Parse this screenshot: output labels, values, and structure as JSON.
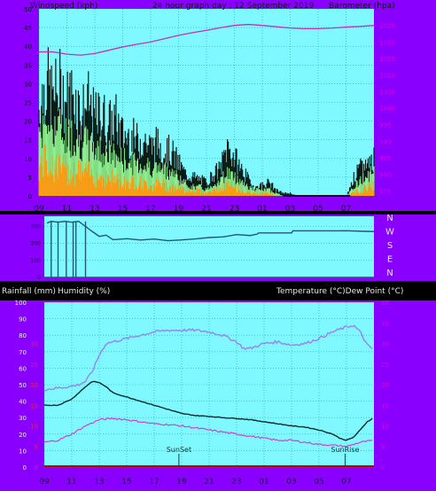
{
  "colors": {
    "outer": "#8a00ff",
    "plot": "#7ff9ff",
    "grid": "#20a8a8",
    "dark_text": "#101020",
    "magenta_text": "#e000e0",
    "red_text": "#ff2020",
    "gust": "#0a1a14",
    "wind_avg": "#90f090",
    "wind_low": "#ff9a10",
    "barometer": "#c030c0",
    "direction": "#1f5878",
    "humidity": "#9a80f0",
    "temperature": "#0a2a28",
    "dewpoint": "#d040d0",
    "rain": "#c00000",
    "sun_marker": "#303030"
  },
  "chart_data": [
    {
      "type": "line",
      "name": "wind-barometer",
      "title": "24 hour graph day : 12 September 2019",
      "left_label": "Windspeed (kph)",
      "right_label": "Barometer (hpa)",
      "x_ticks": [
        "11",
        "13",
        "15",
        "17",
        "19",
        "21",
        "23",
        "01",
        "03",
        "05",
        "07",
        "09"
      ],
      "y_ticks_left": [
        0,
        5,
        10,
        15,
        20,
        25,
        30,
        35,
        40,
        45,
        50
      ],
      "y_ticks_right": [
        975,
        980,
        985,
        990,
        995,
        1000,
        1005,
        1010,
        1015,
        1020,
        1025
      ],
      "ylim_left": [
        0,
        50
      ],
      "ylim_right": [
        973.5,
        1030
      ],
      "x_hours": [
        9,
        33
      ],
      "gust_envelope": [
        [
          9.0,
          32
        ],
        [
          9.5,
          42
        ],
        [
          10.0,
          36
        ],
        [
          10.5,
          40
        ],
        [
          11.0,
          35
        ],
        [
          11.5,
          38
        ],
        [
          12.0,
          30
        ],
        [
          12.5,
          34
        ],
        [
          13.0,
          28
        ],
        [
          13.5,
          30
        ],
        [
          14.0,
          26
        ],
        [
          14.5,
          28
        ],
        [
          15.0,
          22
        ],
        [
          15.5,
          22
        ],
        [
          16.0,
          20
        ],
        [
          16.5,
          21
        ],
        [
          17.0,
          18
        ],
        [
          17.5,
          19
        ],
        [
          18.0,
          17
        ],
        [
          18.5,
          16
        ],
        [
          19.0,
          12
        ],
        [
          19.5,
          8
        ],
        [
          20.0,
          7
        ],
        [
          20.5,
          6
        ],
        [
          21.0,
          5
        ],
        [
          21.5,
          8
        ],
        [
          22.0,
          10
        ],
        [
          22.5,
          18
        ],
        [
          23.0,
          14
        ],
        [
          23.5,
          10
        ],
        [
          24.0,
          6
        ],
        [
          24.5,
          3
        ],
        [
          25.0,
          4
        ],
        [
          25.5,
          5
        ],
        [
          26.0,
          2
        ],
        [
          26.5,
          1
        ],
        [
          27.0,
          1
        ],
        [
          27.5,
          0
        ],
        [
          28.0,
          0
        ],
        [
          28.5,
          0
        ],
        [
          29.0,
          0
        ],
        [
          29.5,
          0
        ],
        [
          30.0,
          0
        ],
        [
          30.5,
          0
        ],
        [
          31.0,
          0
        ],
        [
          31.5,
          6
        ],
        [
          32.0,
          10
        ],
        [
          32.5,
          12
        ],
        [
          33.0,
          14
        ]
      ],
      "avg_envelope": [
        [
          9.0,
          22
        ],
        [
          9.5,
          25
        ],
        [
          10.0,
          24
        ],
        [
          10.5,
          22
        ],
        [
          11.0,
          20
        ],
        [
          11.5,
          20
        ],
        [
          12.0,
          18
        ],
        [
          12.5,
          17
        ],
        [
          13.0,
          16
        ],
        [
          13.5,
          15
        ],
        [
          14.0,
          14
        ],
        [
          14.5,
          13
        ],
        [
          15.0,
          12
        ],
        [
          15.5,
          11
        ],
        [
          16.0,
          11
        ],
        [
          16.5,
          10
        ],
        [
          17.0,
          10
        ],
        [
          17.5,
          9
        ],
        [
          18.0,
          9
        ],
        [
          18.5,
          8
        ],
        [
          19.0,
          6
        ],
        [
          19.5,
          4
        ],
        [
          20.0,
          3
        ],
        [
          20.5,
          3
        ],
        [
          21.0,
          2
        ],
        [
          21.5,
          4
        ],
        [
          22.0,
          5
        ],
        [
          22.5,
          8
        ],
        [
          23.0,
          6
        ],
        [
          23.5,
          5
        ],
        [
          24.0,
          3
        ],
        [
          24.5,
          2
        ],
        [
          25.0,
          2
        ],
        [
          25.5,
          2
        ],
        [
          26.0,
          1
        ],
        [
          26.5,
          0
        ],
        [
          27.0,
          0
        ],
        [
          27.5,
          0
        ],
        [
          28.0,
          0
        ],
        [
          28.5,
          0
        ],
        [
          29.0,
          0
        ],
        [
          29.5,
          0
        ],
        [
          30.0,
          0
        ],
        [
          30.5,
          0
        ],
        [
          31.0,
          0
        ],
        [
          31.5,
          3
        ],
        [
          32.0,
          5
        ],
        [
          32.5,
          7
        ],
        [
          33.0,
          8
        ]
      ],
      "low_envelope": [
        [
          9.0,
          10
        ],
        [
          9.5,
          12
        ],
        [
          10.0,
          11
        ],
        [
          10.5,
          10
        ],
        [
          11.0,
          9
        ],
        [
          11.5,
          9
        ],
        [
          12.0,
          8
        ],
        [
          12.5,
          8
        ],
        [
          13.0,
          7
        ],
        [
          13.5,
          7
        ],
        [
          14.0,
          6
        ],
        [
          14.5,
          6
        ],
        [
          15.0,
          5
        ],
        [
          15.5,
          5
        ],
        [
          16.0,
          5
        ],
        [
          16.5,
          4
        ],
        [
          17.0,
          4
        ],
        [
          17.5,
          4
        ],
        [
          18.0,
          4
        ],
        [
          18.5,
          3
        ],
        [
          19.0,
          3
        ],
        [
          19.5,
          2
        ],
        [
          20.0,
          2
        ],
        [
          20.5,
          2
        ],
        [
          21.0,
          1
        ],
        [
          21.5,
          2
        ],
        [
          22.0,
          2
        ],
        [
          22.5,
          4
        ],
        [
          23.0,
          3
        ],
        [
          23.5,
          2
        ],
        [
          24.0,
          1
        ],
        [
          24.5,
          1
        ],
        [
          25.0,
          1
        ],
        [
          25.5,
          1
        ],
        [
          26.0,
          0
        ],
        [
          26.5,
          0
        ],
        [
          27.0,
          0
        ],
        [
          27.5,
          0
        ],
        [
          28.0,
          0
        ],
        [
          28.5,
          0
        ],
        [
          29.0,
          0
        ],
        [
          29.5,
          0
        ],
        [
          30.0,
          0
        ],
        [
          30.5,
          0
        ],
        [
          31.0,
          0
        ],
        [
          31.5,
          1
        ],
        [
          32.0,
          2
        ],
        [
          32.5,
          3
        ],
        [
          33.0,
          4
        ]
      ],
      "barometer": [
        [
          9.0,
          1017.0
        ],
        [
          10.0,
          1017.0
        ],
        [
          11.0,
          1016.3
        ],
        [
          12.0,
          1016.0
        ],
        [
          13.0,
          1016.5
        ],
        [
          14.0,
          1017.5
        ],
        [
          15.0,
          1018.5
        ],
        [
          16.0,
          1019.3
        ],
        [
          17.0,
          1020.0
        ],
        [
          18.0,
          1021.0
        ],
        [
          19.0,
          1022.0
        ],
        [
          20.0,
          1022.8
        ],
        [
          21.0,
          1023.5
        ],
        [
          22.0,
          1024.3
        ],
        [
          23.0,
          1025.0
        ],
        [
          24.0,
          1025.3
        ],
        [
          25.0,
          1025.0
        ],
        [
          26.0,
          1024.6
        ],
        [
          27.0,
          1024.2
        ],
        [
          28.0,
          1024.0
        ],
        [
          29.0,
          1024.0
        ],
        [
          30.0,
          1024.2
        ],
        [
          31.0,
          1024.5
        ],
        [
          32.0,
          1024.7
        ],
        [
          33.0,
          1025.0
        ]
      ]
    },
    {
      "type": "line",
      "name": "wind-direction",
      "right_labels": [
        "N",
        "W",
        "S",
        "E",
        "N"
      ],
      "y_ticks": [
        0,
        100,
        200,
        300
      ],
      "ylim": [
        0,
        360
      ],
      "x_hours": [
        9,
        33
      ],
      "direction": [
        [
          9.2,
          320
        ],
        [
          9.5,
          330
        ],
        [
          10.0,
          325
        ],
        [
          10.5,
          330
        ],
        [
          11.0,
          325
        ],
        [
          11.5,
          330
        ],
        [
          12.0,
          300
        ],
        [
          12.5,
          270
        ],
        [
          13.0,
          250
        ],
        [
          13.5,
          240
        ],
        [
          14.0,
          225
        ],
        [
          15.0,
          220
        ],
        [
          16.0,
          222
        ],
        [
          17.0,
          218
        ],
        [
          18.0,
          225
        ],
        [
          19.0,
          222
        ],
        [
          20.0,
          230
        ],
        [
          21.0,
          232
        ],
        [
          22.0,
          238
        ],
        [
          23.0,
          245
        ],
        [
          24.0,
          250
        ],
        [
          24.5,
          255
        ],
        [
          24.6,
          262
        ],
        [
          27.0,
          262
        ],
        [
          27.1,
          274
        ],
        [
          30.0,
          274
        ],
        [
          31.0,
          275
        ],
        [
          32.0,
          272
        ],
        [
          33.0,
          270
        ]
      ],
      "calm_drops": [
        9.5,
        10.0,
        10.6,
        11.1,
        11.3,
        12.0
      ]
    },
    {
      "type": "line",
      "name": "temperature-humidity-rain",
      "left_label_1": "Rainfall (mm)",
      "left_label_2": "Humidity (%)",
      "right_label": "Temperature (°C)Dew Point (°C)",
      "humidity_ticks": [
        0,
        10,
        20,
        30,
        40,
        50,
        60,
        70,
        80,
        90,
        100
      ],
      "rain_ticks": [
        "0",
        "5",
        "10",
        "15",
        "20",
        "25",
        "30"
      ],
      "temp_ticks": [
        0,
        5,
        10,
        15,
        20,
        25,
        30,
        35,
        40
      ],
      "ylim_humidity": [
        0,
        100
      ],
      "ylim_temp": [
        0,
        40
      ],
      "x_hours": [
        9,
        33
      ],
      "humidity": [
        [
          9.0,
          47
        ],
        [
          10.0,
          48
        ],
        [
          11.0,
          49
        ],
        [
          11.5,
          50
        ],
        [
          12.0,
          52
        ],
        [
          12.5,
          58
        ],
        [
          13.0,
          68
        ],
        [
          13.5,
          75
        ],
        [
          14.0,
          76
        ],
        [
          15.0,
          78
        ],
        [
          16.0,
          80
        ],
        [
          17.0,
          82
        ],
        [
          18.0,
          83
        ],
        [
          19.0,
          83
        ],
        [
          20.0,
          83
        ],
        [
          21.0,
          82
        ],
        [
          22.0,
          80
        ],
        [
          23.0,
          76
        ],
        [
          23.5,
          72
        ],
        [
          24.0,
          72
        ],
        [
          25.0,
          75
        ],
        [
          26.0,
          76
        ],
        [
          27.0,
          74
        ],
        [
          28.0,
          75
        ],
        [
          29.0,
          78
        ],
        [
          30.0,
          82
        ],
        [
          31.0,
          85
        ],
        [
          31.5,
          86
        ],
        [
          32.0,
          82
        ],
        [
          32.5,
          74
        ],
        [
          33.0,
          71
        ]
      ],
      "temperature": [
        [
          9.0,
          15.0
        ],
        [
          10.0,
          15.0
        ],
        [
          11.0,
          16.5
        ],
        [
          12.0,
          19.5
        ],
        [
          12.5,
          20.8
        ],
        [
          13.0,
          20.5
        ],
        [
          13.5,
          19.5
        ],
        [
          14.0,
          18.0
        ],
        [
          15.0,
          17.0
        ],
        [
          16.0,
          16.0
        ],
        [
          17.0,
          15.0
        ],
        [
          18.0,
          14.0
        ],
        [
          19.0,
          13.0
        ],
        [
          20.0,
          12.5
        ],
        [
          21.0,
          12.3
        ],
        [
          22.0,
          12.0
        ],
        [
          23.0,
          11.8
        ],
        [
          24.0,
          11.5
        ],
        [
          25.0,
          11.0
        ],
        [
          26.0,
          10.5
        ],
        [
          27.0,
          10.0
        ],
        [
          28.0,
          9.7
        ],
        [
          29.0,
          9.0
        ],
        [
          30.0,
          8.0
        ],
        [
          30.5,
          7.0
        ],
        [
          31.0,
          6.5
        ],
        [
          31.5,
          7.2
        ],
        [
          32.0,
          9.0
        ],
        [
          32.5,
          11.0
        ],
        [
          33.0,
          12.0
        ]
      ],
      "dewpoint": [
        [
          9.0,
          6.0
        ],
        [
          10.0,
          6.5
        ],
        [
          11.0,
          8.0
        ],
        [
          12.0,
          10.0
        ],
        [
          13.0,
          11.5
        ],
        [
          14.0,
          11.8
        ],
        [
          15.0,
          11.5
        ],
        [
          16.0,
          11.0
        ],
        [
          17.0,
          10.5
        ],
        [
          18.0,
          10.3
        ],
        [
          19.0,
          10.0
        ],
        [
          20.0,
          9.5
        ],
        [
          21.0,
          9.0
        ],
        [
          22.0,
          8.5
        ],
        [
          23.0,
          8.0
        ],
        [
          24.0,
          7.5
        ],
        [
          25.0,
          7.0
        ],
        [
          26.0,
          6.5
        ],
        [
          27.0,
          6.5
        ],
        [
          28.0,
          6.0
        ],
        [
          29.0,
          5.5
        ],
        [
          30.0,
          5.3
        ],
        [
          31.0,
          5.0
        ],
        [
          32.0,
          6.0
        ],
        [
          33.0,
          6.5
        ]
      ],
      "rain_total": 0,
      "markers": [
        {
          "label": "SunSet",
          "hour": 18.8
        },
        {
          "label": "SunRise",
          "hour": 30.9
        }
      ]
    }
  ]
}
